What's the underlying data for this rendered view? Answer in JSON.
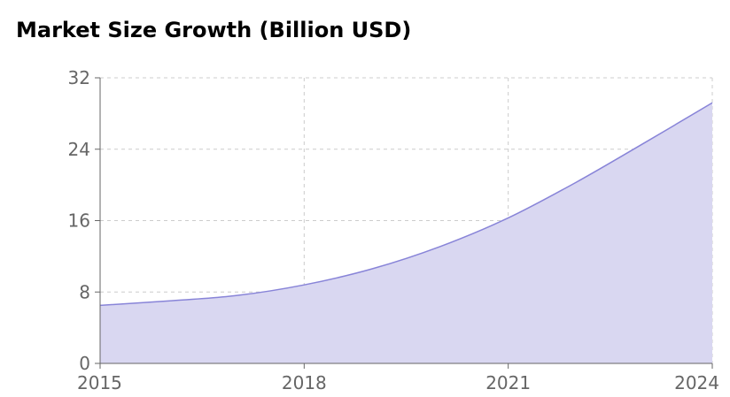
{
  "chart_data": {
    "type": "area",
    "title": "Market Size Growth (Billion USD)",
    "xlabel": "",
    "ylabel": "",
    "x": [
      2015,
      2016,
      2017,
      2018,
      2019,
      2020,
      2021,
      2022,
      2023,
      2024
    ],
    "series": [
      {
        "values": [
          6.5,
          7.0,
          7.6,
          8.8,
          10.6,
          13.1,
          16.3,
          20.3,
          24.7,
          29.2
        ]
      }
    ],
    "x_ticks": [
      "2015",
      "2018",
      "2021",
      "2024"
    ],
    "y_ticks": [
      "0",
      "8",
      "16",
      "24",
      "32"
    ],
    "xlim": [
      2015,
      2024
    ],
    "ylim": [
      0,
      32
    ],
    "grid": true,
    "colors": {
      "line": "#8884d8",
      "fill": "#d9d7f1",
      "grid": "#cccccc",
      "axis": "#666666"
    }
  }
}
